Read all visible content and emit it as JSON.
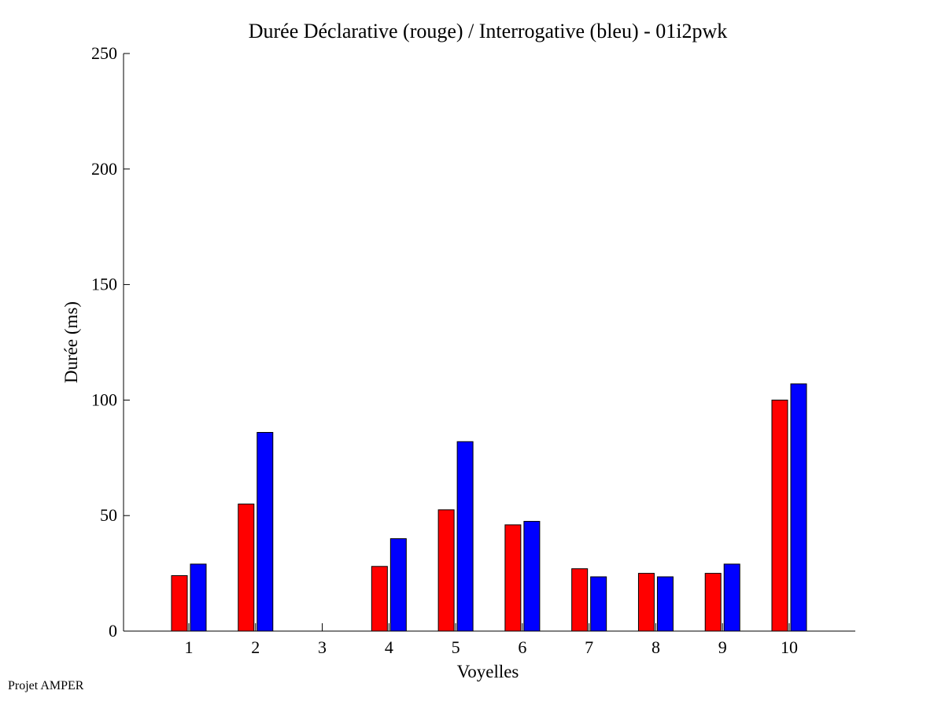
{
  "chart_data": {
    "type": "bar",
    "title": "Durée Déclarative (rouge) / Interrogative (bleu) - 01i2pwk",
    "xlabel": "Voyelles",
    "ylabel": "Durée (ms)",
    "categories": [
      "1",
      "2",
      "3",
      "4",
      "5",
      "6",
      "7",
      "8",
      "9",
      "10"
    ],
    "ylim": [
      0,
      250
    ],
    "yticks": [
      "0",
      "50",
      "100",
      "150",
      "200",
      "250"
    ],
    "grid": false,
    "series": [
      {
        "color": "#ff0000",
        "values": [
          24,
          55,
          0,
          28,
          52.5,
          46,
          27,
          25,
          25,
          100
        ]
      },
      {
        "color": "#0000ff",
        "values": [
          29,
          86,
          0,
          40,
          82,
          47.5,
          23.5,
          23.5,
          29,
          107
        ]
      }
    ]
  },
  "footer": {
    "note": "Projet AMPER"
  }
}
